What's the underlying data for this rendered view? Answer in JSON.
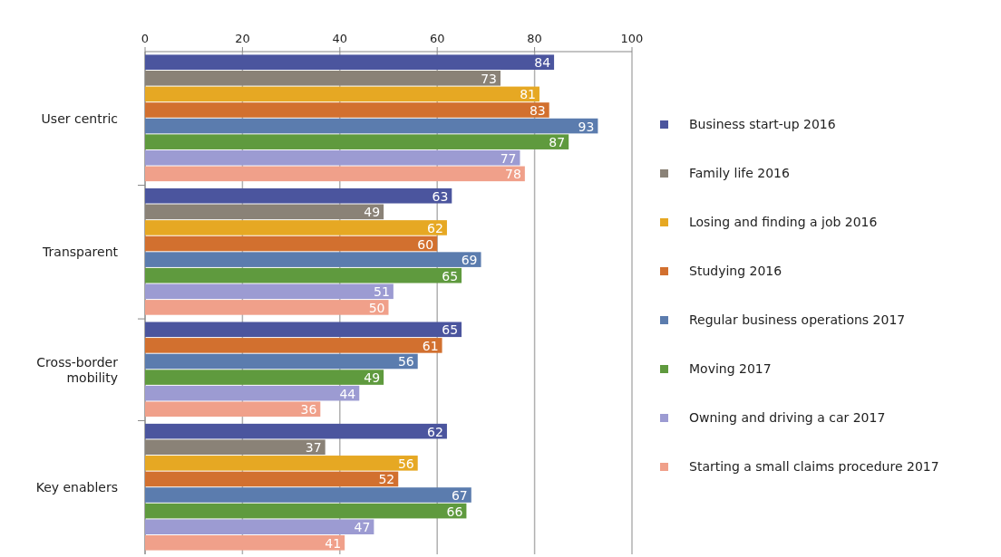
{
  "chart_data": {
    "type": "bar",
    "orientation": "horizontal",
    "categories": [
      "User centric",
      "Transparent",
      "Cross-border mobility",
      "Key enablers"
    ],
    "series": [
      {
        "name": "Business start-up 2016",
        "color": "#4b559e",
        "values": [
          84,
          63,
          65,
          62
        ]
      },
      {
        "name": "Family life 2016",
        "color": "#8a8277",
        "values": [
          73,
          49,
          null,
          37
        ]
      },
      {
        "name": "Losing and finding a job 2016",
        "color": "#e6a823",
        "values": [
          81,
          62,
          null,
          56
        ]
      },
      {
        "name": "Studying 2016",
        "color": "#d2702f",
        "values": [
          83,
          60,
          61,
          52
        ]
      },
      {
        "name": "Regular business operations 2017",
        "color": "#5b7cae",
        "values": [
          93,
          69,
          56,
          67
        ]
      },
      {
        "name": "Moving 2017",
        "color": "#5f9a3e",
        "values": [
          87,
          65,
          49,
          66
        ]
      },
      {
        "name": "Owning and driving a car 2017",
        "color": "#9c9bd2",
        "values": [
          77,
          51,
          44,
          47
        ]
      },
      {
        "name": "Starting a small claims procedure 2017",
        "color": "#f0a08a",
        "values": [
          78,
          50,
          36,
          41
        ]
      }
    ],
    "xlim": [
      0,
      100
    ],
    "xticks": [
      0,
      20,
      40,
      60,
      80,
      100
    ],
    "grid": "x",
    "legend": "right",
    "data_labels": true
  }
}
